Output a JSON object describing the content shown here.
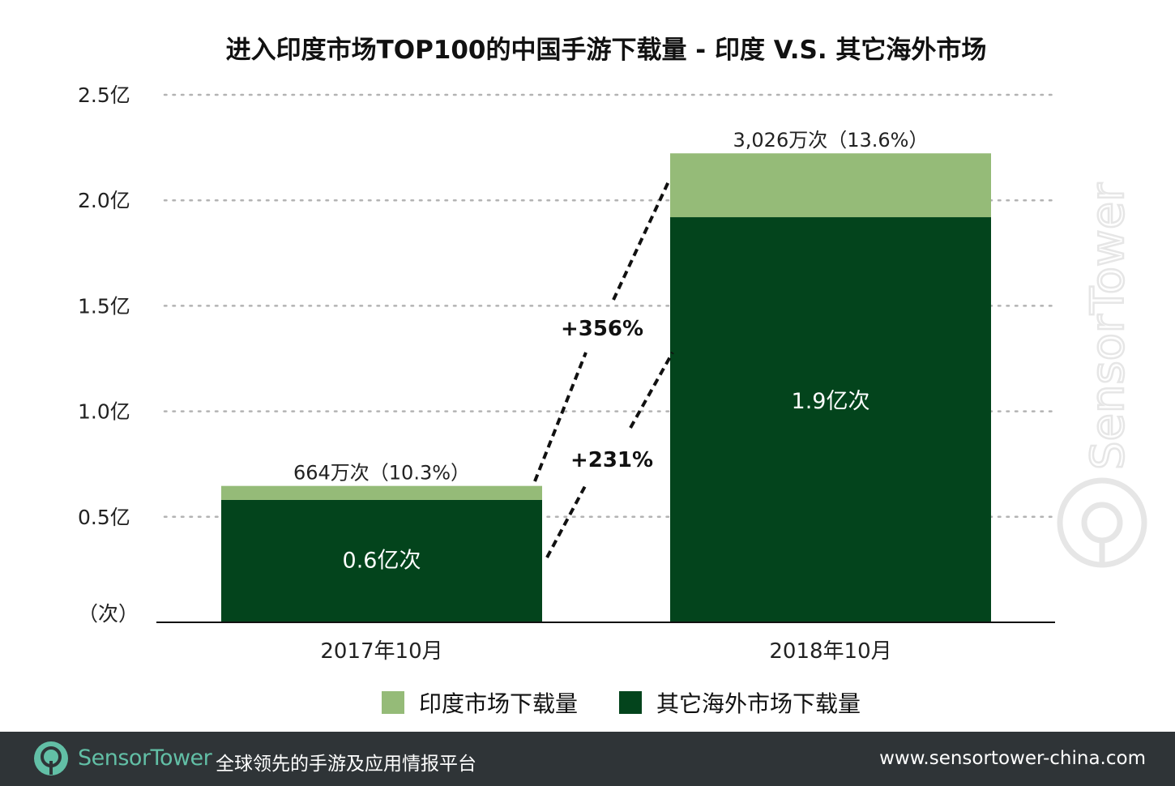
{
  "colors": {
    "india": "#95bb78",
    "overseas": "#03441c",
    "footer_bg": "#2f3437",
    "brand_teal": "#62bfa6"
  },
  "chart_data": {
    "type": "bar",
    "stacked": true,
    "title": "进入印度市场TOP100的中国手游下载量 - 印度 V.S. 其它海外市场",
    "unit_label": "（次）",
    "categories": [
      "2017年10月",
      "2018年10月"
    ],
    "ylim": [
      0,
      2.5
    ],
    "yticks": [
      {
        "value": 0.5,
        "label": "0.5亿"
      },
      {
        "value": 1.0,
        "label": "1.0亿"
      },
      {
        "value": 1.5,
        "label": "1.5亿"
      },
      {
        "value": 2.0,
        "label": "2.0亿"
      },
      {
        "value": 2.5,
        "label": "2.5亿"
      }
    ],
    "grid": true,
    "series": [
      {
        "name": "其它海外市场下载量",
        "color": "#03441c",
        "values": [
          0.58,
          1.92
        ],
        "labels": [
          "0.6亿次",
          "1.9亿次"
        ]
      },
      {
        "name": "印度市场下载量",
        "color": "#95bb78",
        "values": [
          0.0664,
          0.3026
        ],
        "labels": [
          "664万次（10.3%）",
          "3,026万次（13.6%）"
        ]
      }
    ],
    "annotations": [
      {
        "text": "+356%",
        "from": "2017年10月",
        "to": "2018年10月",
        "series": "印度市场下载量"
      },
      {
        "text": "+231%",
        "from": "2017年10月",
        "to": "2018年10月",
        "series": "其它海外市场下载量"
      }
    ],
    "legend": {
      "position": "bottom",
      "items": [
        "印度市场下载量",
        "其它海外市场下载量"
      ]
    }
  },
  "watermark": {
    "text": "SensorTower"
  },
  "footer": {
    "brand_name": "SensorTower",
    "tagline": "全球领先的手游及应用情报平台",
    "website": "www.sensortower-china.com"
  }
}
